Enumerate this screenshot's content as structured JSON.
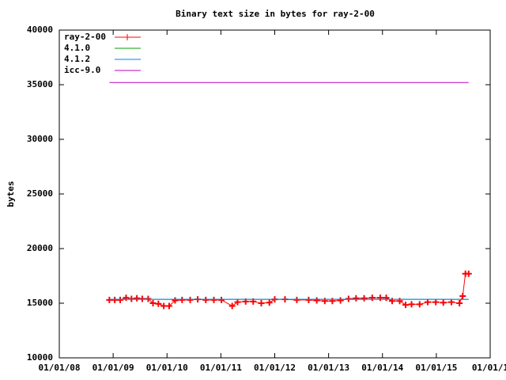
{
  "chart_data": {
    "type": "line",
    "title": "Binary text size in bytes for ray-2-00",
    "y_label": "bytes",
    "xlim": [
      2008,
      2016
    ],
    "xticks": [
      {
        "value": 2008,
        "label": "01/01/08"
      },
      {
        "value": 2009,
        "label": "01/01/09"
      },
      {
        "value": 2010,
        "label": "01/01/10"
      },
      {
        "value": 2011,
        "label": "01/01/11"
      },
      {
        "value": 2012,
        "label": "01/01/12"
      },
      {
        "value": 2013,
        "label": "01/01/13"
      },
      {
        "value": 2014,
        "label": "01/01/14"
      },
      {
        "value": 2015,
        "label": "01/01/15"
      },
      {
        "value": 2016,
        "label": "01/01/1"
      }
    ],
    "ylim": [
      10000,
      40000
    ],
    "yticks": [
      10000,
      15000,
      20000,
      25000,
      30000,
      35000,
      40000
    ],
    "legend": "top-left",
    "series": [
      {
        "name": "ray-2-00",
        "color": "#ff0000",
        "marker": "+",
        "x": [
          2008.93,
          2009.03,
          2009.13,
          2009.24,
          2009.34,
          2009.44,
          2009.54,
          2009.65,
          2009.74,
          2009.84,
          2009.94,
          2010.04,
          2010.15,
          2010.28,
          2010.43,
          2010.57,
          2010.72,
          2010.87,
          2011.01,
          2011.21,
          2011.31,
          2011.46,
          2011.6,
          2011.75,
          2011.9,
          2012.0,
          2012.19,
          2012.41,
          2012.63,
          2012.78,
          2012.93,
          2013.07,
          2013.22,
          2013.37,
          2013.51,
          2013.66,
          2013.81,
          2013.96,
          2014.07,
          2014.18,
          2014.32,
          2014.43,
          2014.54,
          2014.69,
          2014.84,
          2014.99,
          2015.13,
          2015.28,
          2015.43,
          2015.49,
          2015.54,
          2015.6
        ],
        "values": [
          15300,
          15300,
          15300,
          15500,
          15400,
          15450,
          15400,
          15400,
          15000,
          14950,
          14750,
          14750,
          15250,
          15300,
          15300,
          15350,
          15300,
          15300,
          15300,
          14750,
          15100,
          15150,
          15150,
          15000,
          15050,
          15350,
          15350,
          15300,
          15300,
          15250,
          15200,
          15200,
          15250,
          15400,
          15450,
          15450,
          15500,
          15500,
          15500,
          15200,
          15200,
          14850,
          14900,
          14900,
          15100,
          15100,
          15050,
          15100,
          15000,
          15650,
          17700,
          17700
        ]
      },
      {
        "name": "4.1.0",
        "color": "#00a000",
        "x": [
          2008.93,
          2015.6
        ],
        "values": [
          15350,
          15350
        ]
      },
      {
        "name": "4.1.2",
        "color": "#0080ff",
        "x": [
          2008.93,
          2015.6
        ],
        "values": [
          15350,
          15350
        ]
      },
      {
        "name": "icc-9.0",
        "color": "#c000c0",
        "x": [
          2008.93,
          2015.6
        ],
        "values": [
          35200,
          35200
        ]
      }
    ]
  }
}
